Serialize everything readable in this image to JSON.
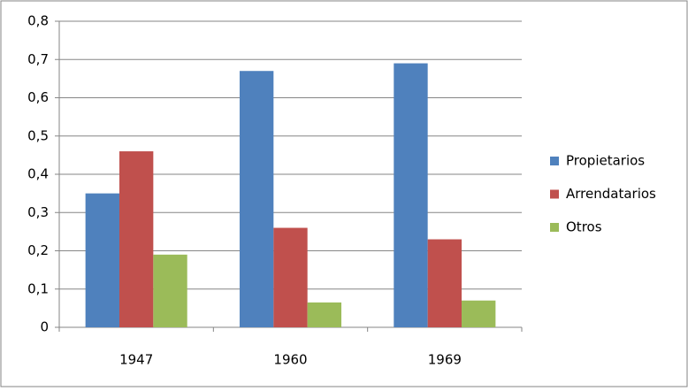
{
  "chart_data": {
    "type": "bar",
    "categories": [
      "1947",
      "1960",
      "1969"
    ],
    "series": [
      {
        "name": "Propietarios",
        "color": "#4f81bd",
        "values": [
          0.35,
          0.67,
          0.69
        ]
      },
      {
        "name": "Arrendatarios",
        "color": "#c0504d",
        "values": [
          0.46,
          0.26,
          0.23
        ]
      },
      {
        "name": "Otros",
        "color": "#9bbb59",
        "values": [
          0.19,
          0.065,
          0.07
        ]
      }
    ],
    "ylim": [
      0,
      0.8
    ],
    "yticks": [
      0,
      {
        "value": 0.1,
        "label": "0,1"
      },
      {
        "value": 0.2,
        "label": "0,2"
      },
      {
        "value": 0.3,
        "label": "0,3"
      },
      {
        "value": 0.4,
        "label": "0,4"
      },
      {
        "value": 0.5,
        "label": "0,5"
      },
      {
        "value": 0.6,
        "label": "0,6"
      },
      {
        "value": 0.7,
        "label": "0,7"
      },
      {
        "value": 0.8,
        "label": "0,8"
      }
    ],
    "grid": true,
    "legend": "right"
  }
}
